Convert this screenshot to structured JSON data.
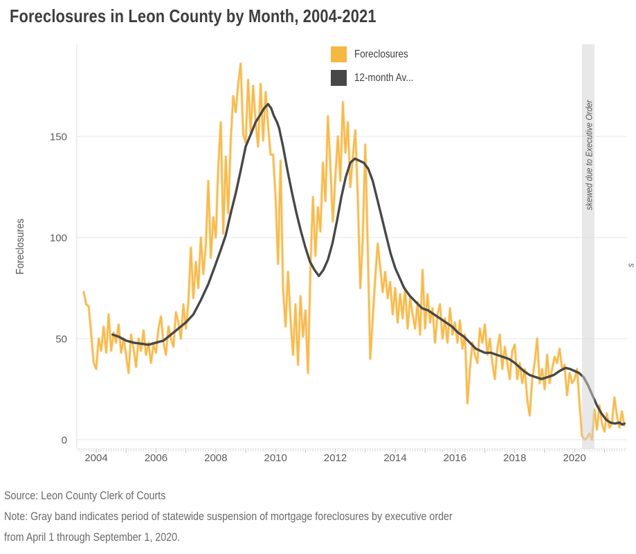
{
  "chart_data": {
    "type": "line",
    "title": "Foreclosures in Leon County by Month, 2004-2021",
    "ylabel": "Foreclosures",
    "xlabel": "",
    "grid": true,
    "legend_position": "top-center",
    "x_tick_labels": [
      "2004",
      "2006",
      "2008",
      "2010",
      "2012",
      "2014",
      "2016",
      "2018",
      "2020"
    ],
    "x_tick_years": [
      2004,
      2006,
      2008,
      2010,
      2012,
      2014,
      2016,
      2018,
      2020
    ],
    "y_tick_labels": [
      "0",
      "50",
      "100",
      "150"
    ],
    "y_ticks": [
      0,
      50,
      100,
      150
    ],
    "ylim": [
      0,
      195
    ],
    "xlim": [
      2003.35,
      2021.75
    ],
    "start_month": "2003-08",
    "series": [
      {
        "name": "Foreclosures",
        "legend_label": "Foreclosures",
        "color": "#F5B843",
        "monthly_values": [
          73,
          67,
          66,
          52,
          38,
          35,
          50,
          44,
          56,
          43,
          62,
          44,
          53,
          48,
          57,
          43,
          50,
          42,
          33,
          52,
          45,
          36,
          50,
          44,
          54,
          42,
          48,
          38,
          47,
          43,
          55,
          61,
          48,
          42,
          56,
          50,
          46,
          63,
          58,
          50,
          67,
          55,
          68,
          95,
          70,
          88,
          75,
          100,
          82,
          96,
          128,
          90,
          110,
          100,
          135,
          157,
          102,
          140,
          112,
          148,
          170,
          162,
          176,
          186,
          151,
          147,
          178,
          152,
          175,
          157,
          145,
          176,
          148,
          172,
          155,
          141,
          141,
          120,
          87,
          138,
          75,
          56,
          83,
          60,
          42,
          67,
          37,
          71,
          51,
          64,
          33,
          85,
          120,
          91,
          115,
          103,
          137,
          118,
          160,
          135,
          108,
          130,
          150,
          128,
          167,
          142,
          157,
          125,
          140,
          153,
          120,
          75,
          100,
          146,
          95,
          40,
          60,
          80,
          97,
          85,
          73,
          83,
          70,
          78,
          62,
          75,
          58,
          72,
          60,
          75,
          55,
          70,
          62,
          55,
          68,
          52,
          84,
          55,
          72,
          58,
          65,
          48,
          62,
          67,
          50,
          60,
          48,
          65,
          52,
          58,
          48,
          59,
          45,
          52,
          18,
          35,
          48,
          42,
          38,
          55,
          48,
          57,
          42,
          50,
          38,
          30,
          45,
          52,
          35,
          46,
          38,
          30,
          44,
          47,
          30,
          38,
          28,
          35,
          20,
          12,
          30,
          38,
          50,
          28,
          35,
          25,
          42,
          28,
          35,
          41,
          38,
          45,
          35,
          37,
          22,
          33,
          28,
          30,
          35,
          18,
          2,
          0,
          1,
          3,
          0,
          15,
          5,
          17,
          8,
          4,
          13,
          6,
          8,
          21,
          12,
          6,
          14,
          7
        ]
      },
      {
        "name": "12-month Average",
        "legend_label": "12-month Av...",
        "color": "#474747",
        "points": [
          [
            2004.55,
            52
          ],
          [
            2004.75,
            51
          ],
          [
            2005.0,
            49
          ],
          [
            2005.25,
            48
          ],
          [
            2005.5,
            47.5
          ],
          [
            2005.75,
            47
          ],
          [
            2006.0,
            48
          ],
          [
            2006.25,
            49
          ],
          [
            2006.5,
            52
          ],
          [
            2006.75,
            55
          ],
          [
            2007.0,
            58
          ],
          [
            2007.25,
            62
          ],
          [
            2007.5,
            69
          ],
          [
            2007.75,
            77
          ],
          [
            2008.0,
            87
          ],
          [
            2008.17,
            94
          ],
          [
            2008.33,
            101
          ],
          [
            2008.5,
            112
          ],
          [
            2008.67,
            122
          ],
          [
            2008.83,
            133
          ],
          [
            2009.0,
            145
          ],
          [
            2009.17,
            151
          ],
          [
            2009.33,
            157
          ],
          [
            2009.5,
            161
          ],
          [
            2009.62,
            164
          ],
          [
            2009.75,
            166
          ],
          [
            2009.85,
            164
          ],
          [
            2009.95,
            160
          ],
          [
            2010.05,
            157
          ],
          [
            2010.12,
            154
          ],
          [
            2010.25,
            145
          ],
          [
            2010.4,
            133
          ],
          [
            2010.55,
            122
          ],
          [
            2010.7,
            112
          ],
          [
            2010.85,
            103
          ],
          [
            2011.0,
            95
          ],
          [
            2011.15,
            88
          ],
          [
            2011.3,
            84
          ],
          [
            2011.45,
            81
          ],
          [
            2011.6,
            84
          ],
          [
            2011.75,
            89
          ],
          [
            2011.9,
            97
          ],
          [
            2012.05,
            108
          ],
          [
            2012.2,
            120
          ],
          [
            2012.35,
            130
          ],
          [
            2012.5,
            137
          ],
          [
            2012.65,
            139
          ],
          [
            2012.8,
            138
          ],
          [
            2012.95,
            137
          ],
          [
            2013.1,
            134
          ],
          [
            2013.25,
            128
          ],
          [
            2013.4,
            119
          ],
          [
            2013.55,
            110
          ],
          [
            2013.7,
            101
          ],
          [
            2013.85,
            92
          ],
          [
            2014.0,
            85
          ],
          [
            2014.15,
            80
          ],
          [
            2014.3,
            75
          ],
          [
            2014.5,
            71
          ],
          [
            2014.7,
            68
          ],
          [
            2014.9,
            65
          ],
          [
            2015.1,
            64
          ],
          [
            2015.3,
            62
          ],
          [
            2015.5,
            60
          ],
          [
            2015.7,
            58
          ],
          [
            2015.9,
            56
          ],
          [
            2016.1,
            53
          ],
          [
            2016.3,
            51
          ],
          [
            2016.5,
            48
          ],
          [
            2016.7,
            45
          ],
          [
            2016.85,
            44
          ],
          [
            2017.0,
            43
          ],
          [
            2017.2,
            43
          ],
          [
            2017.4,
            42
          ],
          [
            2017.6,
            41
          ],
          [
            2017.8,
            40
          ],
          [
            2018.0,
            38
          ],
          [
            2018.15,
            36
          ],
          [
            2018.3,
            34
          ],
          [
            2018.5,
            32
          ],
          [
            2018.7,
            31
          ],
          [
            2018.9,
            30
          ],
          [
            2019.1,
            31
          ],
          [
            2019.3,
            32
          ],
          [
            2019.5,
            34
          ],
          [
            2019.7,
            35.5
          ],
          [
            2019.85,
            35
          ],
          [
            2020.0,
            34
          ],
          [
            2020.15,
            33
          ],
          [
            2020.3,
            31
          ],
          [
            2020.45,
            27
          ],
          [
            2020.6,
            22
          ],
          [
            2020.75,
            17
          ],
          [
            2020.9,
            13
          ],
          [
            2021.05,
            10
          ],
          [
            2021.2,
            8.5
          ],
          [
            2021.35,
            8
          ],
          [
            2021.5,
            8.5
          ],
          [
            2021.6,
            7.5
          ],
          [
            2021.67,
            8
          ]
        ]
      }
    ],
    "band": {
      "label": "skewed due to Executive Order",
      "from": "2020-04-01",
      "to": "2020-09-01",
      "color": "#d2d2d2"
    },
    "right_edge_annotation": "s",
    "colors": {
      "foreclosures_line": "#F5B843",
      "average_line": "#474747",
      "gridline": "#ececec",
      "band_fill": "#d2d2d2",
      "tick_text": "#5a5a5a",
      "title_text": "#3d3d3d",
      "footer_text": "#696969"
    }
  },
  "footer": {
    "source": "Source: Leon County Clerk of Courts",
    "note_line1": "Note: Gray band indicates period of statewide suspension of mortgage foreclosures by executive order",
    "note_line2": "from April 1 through September 1, 2020."
  }
}
